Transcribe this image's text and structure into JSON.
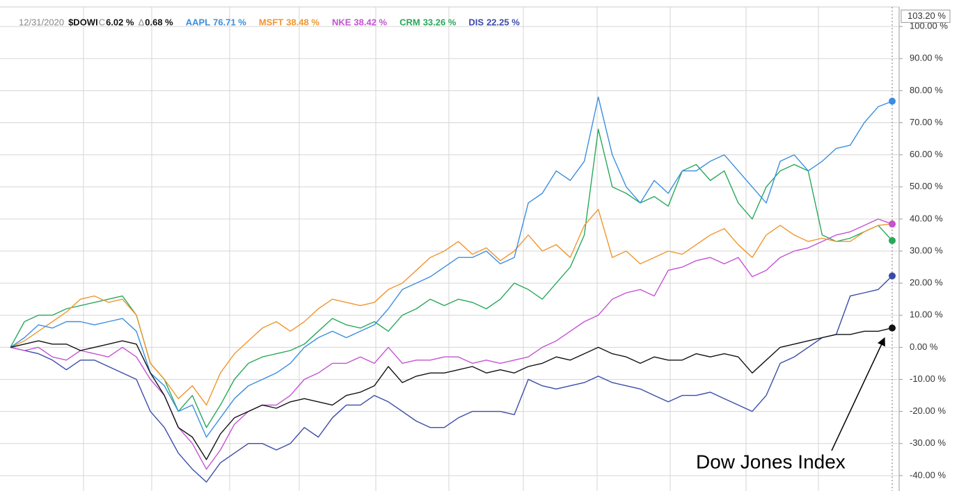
{
  "chart_data": {
    "type": "line",
    "date_label": "12/31/2020",
    "categories": [
      null,
      null,
      null,
      null,
      null,
      null,
      null,
      null,
      null,
      null,
      null,
      null,
      null,
      null,
      null,
      null,
      null,
      null,
      null,
      null,
      null,
      null,
      null,
      null,
      null,
      null,
      null,
      null,
      null,
      null,
      null,
      null,
      null,
      null,
      null,
      null,
      null,
      null,
      null,
      null,
      null,
      null,
      null,
      null,
      null,
      null,
      null,
      null,
      null,
      null,
      null,
      null,
      null,
      null,
      null,
      null,
      null,
      null,
      null,
      null,
      null,
      null,
      null,
      null
    ],
    "series": [
      {
        "name": "$DOWI",
        "color": "#111111",
        "close_prefix": "C",
        "last_label": "6.02 %",
        "change_prefix": "Δ",
        "change_label": "0.68 %",
        "values": [
          0,
          1,
          2,
          1,
          1,
          -1,
          0,
          1,
          2,
          1,
          -8,
          -15,
          -25,
          -28,
          -35,
          -27,
          -22,
          -20,
          -18,
          -19,
          -17,
          -16,
          -17,
          -18,
          -15,
          -14,
          -12,
          -6,
          -11,
          -9,
          -8,
          -8,
          -7,
          -6,
          -8,
          -7,
          -8,
          -6,
          -5,
          -3,
          -4,
          -2,
          0,
          -2,
          -3,
          -5,
          -3,
          -4,
          -4,
          -2,
          -3,
          -2,
          -3,
          -8,
          -4,
          0,
          1,
          2,
          3,
          4,
          4,
          5,
          5,
          6.02
        ]
      },
      {
        "name": "AAPL",
        "color": "#3a8ee0",
        "last_label": "76.71 %",
        "values": [
          0,
          3,
          7,
          6,
          8,
          8,
          7,
          8,
          9,
          5,
          -8,
          -12,
          -20,
          -18,
          -28,
          -22,
          -16,
          -12,
          -10,
          -8,
          -5,
          0,
          3,
          5,
          3,
          5,
          7,
          12,
          18,
          20,
          22,
          25,
          28,
          28,
          30,
          26,
          28,
          45,
          48,
          55,
          52,
          58,
          78,
          60,
          50,
          45,
          52,
          48,
          55,
          55,
          58,
          60,
          55,
          50,
          45,
          58,
          60,
          55,
          58,
          62,
          63,
          70,
          75,
          76.71
        ]
      },
      {
        "name": "MSFT",
        "color": "#f0962e",
        "last_label": "38.48 %",
        "values": [
          0,
          2,
          5,
          8,
          11,
          15,
          16,
          14,
          15,
          10,
          -5,
          -10,
          -16,
          -12,
          -18,
          -8,
          -2,
          2,
          6,
          8,
          5,
          8,
          12,
          15,
          14,
          13,
          14,
          18,
          20,
          24,
          28,
          30,
          33,
          29,
          31,
          27,
          30,
          35,
          30,
          32,
          28,
          38,
          43,
          28,
          30,
          26,
          28,
          30,
          29,
          32,
          35,
          37,
          32,
          28,
          35,
          38,
          35,
          33,
          34,
          33,
          33,
          36,
          38,
          38.48
        ]
      },
      {
        "name": "NKE",
        "color": "#c452d3",
        "last_label": "38.42 %",
        "values": [
          0,
          -1,
          0,
          -3,
          -4,
          -1,
          -2,
          -3,
          0,
          -3,
          -10,
          -15,
          -25,
          -30,
          -38,
          -32,
          -24,
          -20,
          -18,
          -18,
          -15,
          -10,
          -8,
          -5,
          -5,
          -3,
          -5,
          0,
          -5,
          -4,
          -4,
          -3,
          -3,
          -5,
          -4,
          -5,
          -4,
          -3,
          0,
          2,
          5,
          8,
          10,
          15,
          17,
          18,
          16,
          24,
          25,
          27,
          28,
          26,
          28,
          22,
          24,
          28,
          30,
          31,
          33,
          35,
          36,
          38,
          40,
          38.42
        ]
      },
      {
        "name": "CRM",
        "color": "#27a85a",
        "last_label": "33.26 %",
        "values": [
          0,
          8,
          10,
          10,
          12,
          13,
          14,
          15,
          16,
          10,
          -5,
          -10,
          -20,
          -15,
          -25,
          -18,
          -10,
          -5,
          -3,
          -2,
          -1,
          1,
          5,
          9,
          7,
          6,
          8,
          5,
          10,
          12,
          15,
          13,
          15,
          14,
          12,
          15,
          20,
          18,
          15,
          20,
          25,
          35,
          68,
          50,
          48,
          45,
          47,
          44,
          55,
          57,
          52,
          55,
          45,
          40,
          50,
          55,
          57,
          55,
          35,
          33,
          34,
          36,
          38,
          33.26
        ]
      },
      {
        "name": "DIS",
        "color": "#3a4aa8",
        "last_label": "22.25 %",
        "values": [
          0,
          -1,
          -2,
          -4,
          -7,
          -4,
          -4,
          -6,
          -8,
          -10,
          -20,
          -25,
          -33,
          -38,
          -42,
          -36,
          -33,
          -30,
          -30,
          -32,
          -30,
          -25,
          -28,
          -22,
          -18,
          -18,
          -15,
          -17,
          -20,
          -23,
          -25,
          -25,
          -22,
          -20,
          -20,
          -20,
          -21,
          -10,
          -12,
          -13,
          -12,
          -11,
          -9,
          -11,
          -12,
          -13,
          -15,
          -17,
          -15,
          -15,
          -14,
          -16,
          -18,
          -20,
          -15,
          -5,
          -3,
          0,
          3,
          4,
          16,
          17,
          18,
          22.25
        ]
      }
    ],
    "ylim": [
      -44.8,
      106.1
    ],
    "yticks": [
      {
        "value": -40,
        "label": "-40.00 %"
      },
      {
        "value": -30,
        "label": "-30.00 %"
      },
      {
        "value": -20,
        "label": "-20.00 %"
      },
      {
        "value": -10,
        "label": "-10.00 %"
      },
      {
        "value": 0,
        "label": "0.00 %"
      },
      {
        "value": 10,
        "label": "10.00 %"
      },
      {
        "value": 20,
        "label": "20.00 %"
      },
      {
        "value": 30,
        "label": "30.00 %"
      },
      {
        "value": 40,
        "label": "40.00 %"
      },
      {
        "value": 50,
        "label": "50.00 %"
      },
      {
        "value": 60,
        "label": "60.00 %"
      },
      {
        "value": 70,
        "label": "70.00 %"
      },
      {
        "value": 80,
        "label": "80.00 %"
      },
      {
        "value": 90,
        "label": "90.00 %"
      },
      {
        "value": 100,
        "label": "100.00 %"
      }
    ],
    "crosshair_value": 103.2,
    "crosshair_label": "103.20 %",
    "grid": true,
    "annotation": "Dow Jones Index"
  }
}
